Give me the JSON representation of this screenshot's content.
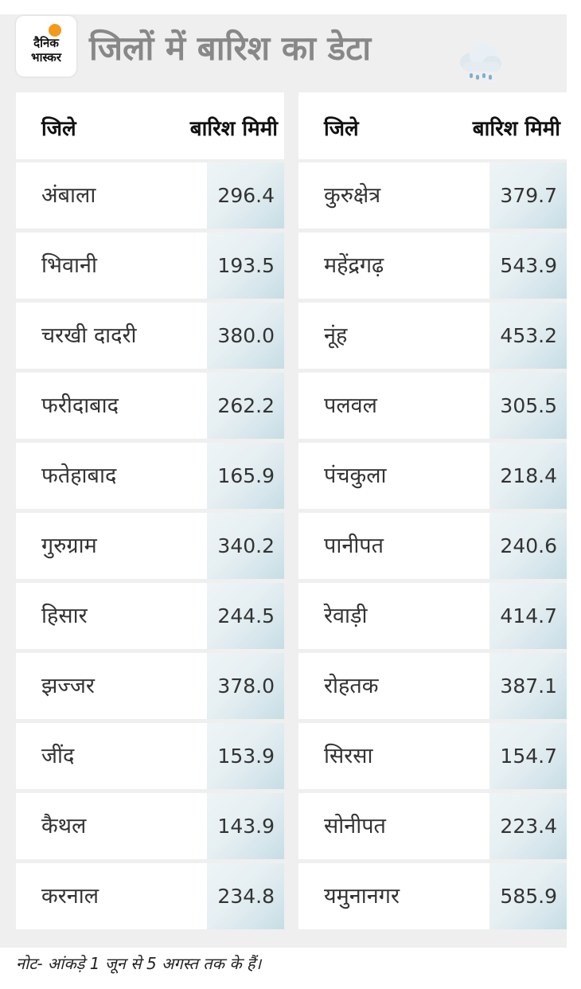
{
  "logo": {
    "line1": "दैनिक",
    "line2": "भास्कर"
  },
  "title": "जिलों में बारिश का डेटा",
  "weather_icon": "cloud-rain-icon",
  "headers": {
    "district": "जिले",
    "rain": "बारिश मिमी"
  },
  "left": [
    {
      "name": "अंबाला",
      "value": "296.4"
    },
    {
      "name": "भिवानी",
      "value": "193.5"
    },
    {
      "name": "चरखी दादरी",
      "value": "380.0"
    },
    {
      "name": "फरीदाबाद",
      "value": "262.2"
    },
    {
      "name": "फतेहाबाद",
      "value": "165.9"
    },
    {
      "name": "गुरुग्राम",
      "value": "340.2"
    },
    {
      "name": "हिसार",
      "value": "244.5"
    },
    {
      "name": "झज्जर",
      "value": "378.0"
    },
    {
      "name": "जींद",
      "value": "153.9"
    },
    {
      "name": "कैथल",
      "value": "143.9"
    },
    {
      "name": "करनाल",
      "value": "234.8"
    }
  ],
  "right": [
    {
      "name": "कुरुक्षेत्र",
      "value": "379.7"
    },
    {
      "name": "महेंद्रगढ़",
      "value": "543.9"
    },
    {
      "name": "नूंह",
      "value": "453.2"
    },
    {
      "name": "पलवल",
      "value": "305.5"
    },
    {
      "name": "पंचकुला",
      "value": "218.4"
    },
    {
      "name": "पानीपत",
      "value": "240.6"
    },
    {
      "name": "रेवाड़ी",
      "value": "414.7"
    },
    {
      "name": "रोहतक",
      "value": "387.1"
    },
    {
      "name": "सिरसा",
      "value": "154.7"
    },
    {
      "name": "सोनीपत",
      "value": "223.4"
    },
    {
      "name": "यमुनानगर",
      "value": "585.9"
    }
  ],
  "note": "नोट- आंकड़े 1 जून से 5 अगस्त तक के हैं।"
}
